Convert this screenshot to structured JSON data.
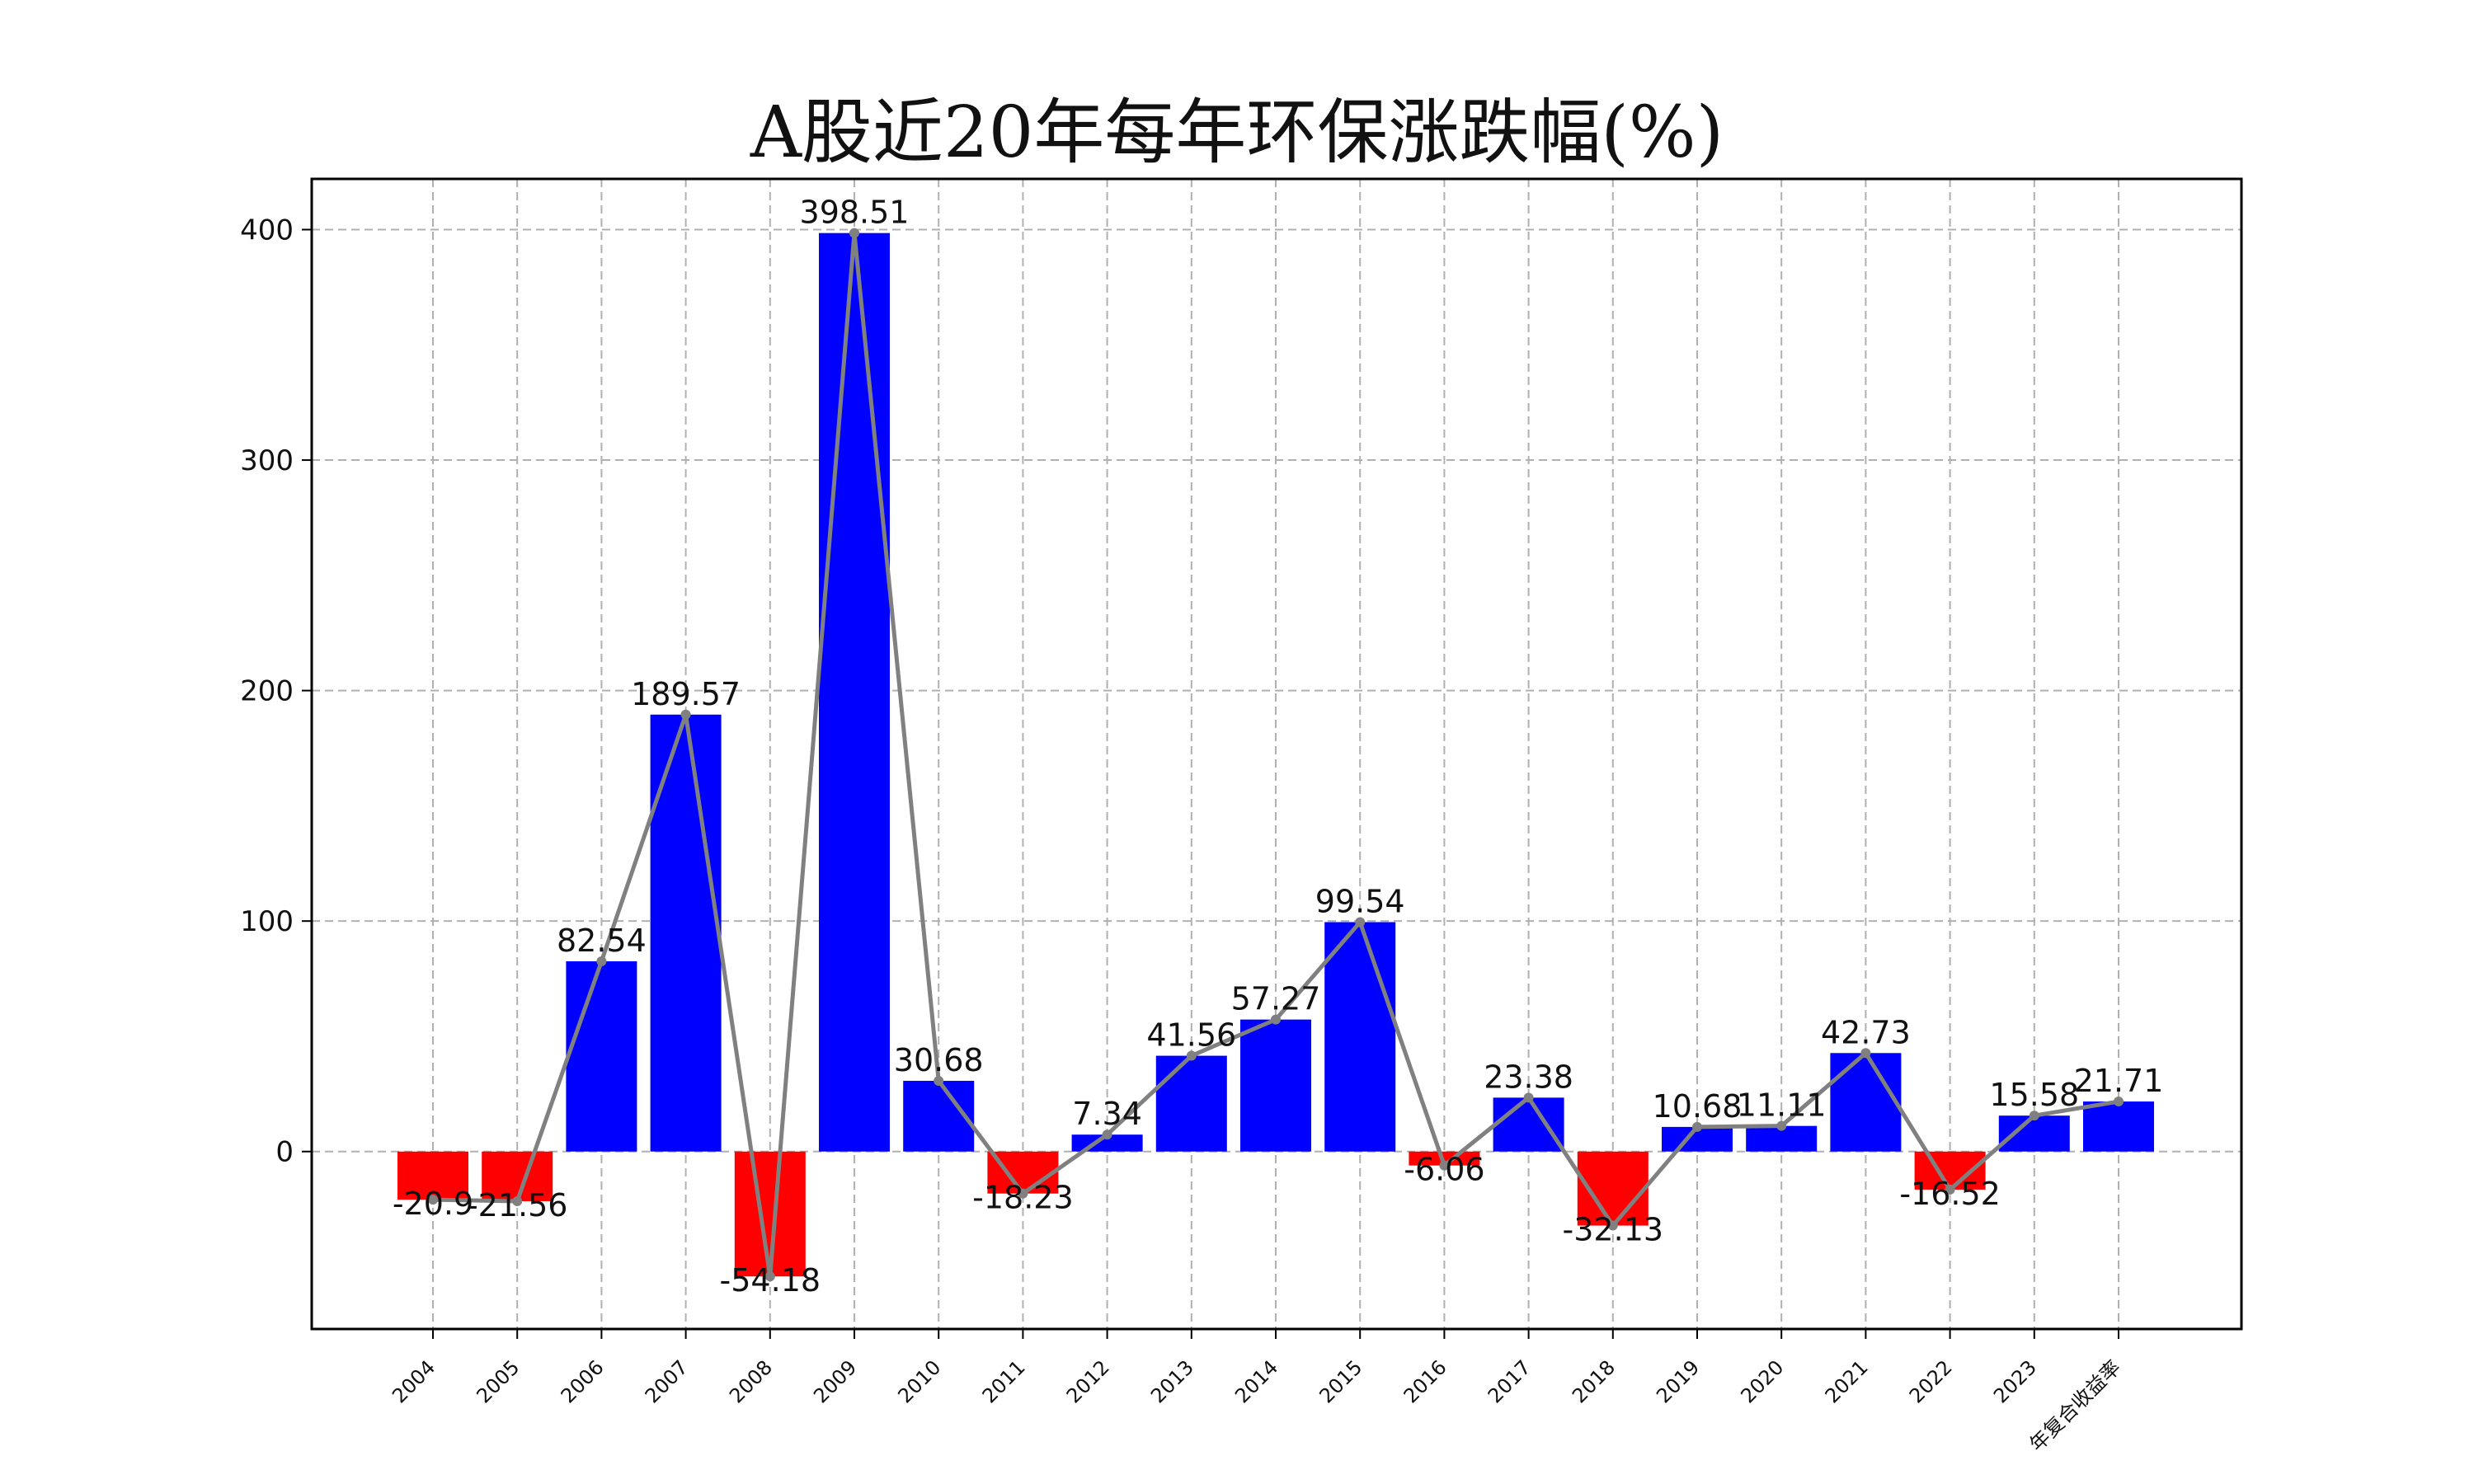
{
  "chart_data": {
    "type": "bar",
    "title": "A股近20年每年环保涨跌幅(%)",
    "xlabel": "",
    "ylabel": "",
    "categories": [
      "2004",
      "2005",
      "2006",
      "2007",
      "2008",
      "2009",
      "2010",
      "2011",
      "2012",
      "2013",
      "2014",
      "2015",
      "2016",
      "2017",
      "2018",
      "2019",
      "2020",
      "2021",
      "2022",
      "2023",
      "年复合收益率"
    ],
    "values": [
      -20.9,
      -21.56,
      82.54,
      189.57,
      -54.18,
      398.51,
      30.68,
      -18.23,
      7.34,
      41.56,
      57.27,
      99.54,
      -6.06,
      23.38,
      -32.13,
      10.68,
      11.11,
      42.73,
      -16.52,
      15.58,
      21.71
    ],
    "value_labels": [
      "-20.9",
      "-21.56",
      "82.54",
      "189.57",
      "-54.18",
      "398.51",
      "30.68",
      "-18.23",
      "7.34",
      "41.56",
      "57.27",
      "99.54",
      "-6.06",
      "23.38",
      "-32.13",
      "10.68",
      "11.11",
      "42.73",
      "-16.52",
      "15.58",
      "21.71"
    ],
    "overlay_line": "same values drawn as a gray line with point markers",
    "yticks": [
      0,
      100,
      200,
      300,
      400
    ],
    "ylim": [
      -77,
      422
    ],
    "grid": true,
    "legend": "none",
    "colors": {
      "positive_bar": "#0000ff",
      "negative_bar": "#ff0000",
      "line": "#808080",
      "grid": "#b0b0b0",
      "axes": "#000000"
    }
  }
}
